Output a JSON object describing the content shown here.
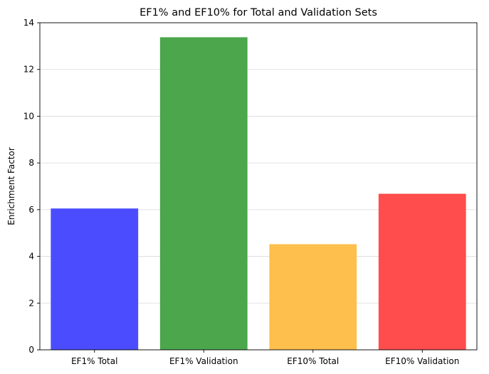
{
  "chart_data": {
    "type": "bar",
    "title": "EF1% and EF10% for Total and Validation Sets",
    "xlabel": "",
    "ylabel": "Enrichment Factor",
    "categories": [
      "EF1% Total",
      "EF1% Validation",
      "EF10% Total",
      "EF10% Validation"
    ],
    "values": [
      6.05,
      13.38,
      4.52,
      6.68
    ],
    "colors": [
      "#4c4cff",
      "#4ca64c",
      "#ffbf4c",
      "#ff4c4c"
    ],
    "ylim": [
      0,
      14
    ],
    "yticks": [
      0,
      2,
      4,
      6,
      8,
      10,
      12,
      14
    ],
    "grid": "y-axis",
    "legend": "none"
  }
}
